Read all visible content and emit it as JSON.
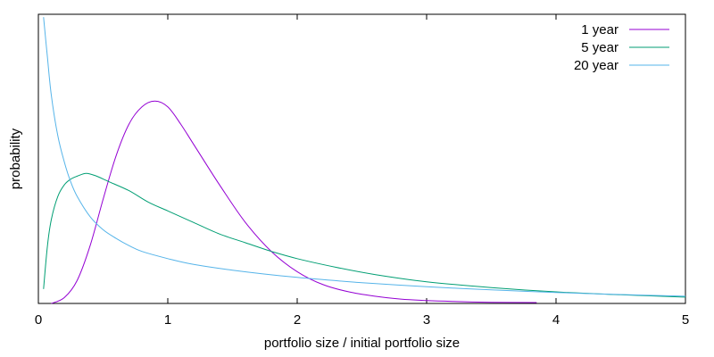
{
  "chart_data": {
    "type": "line",
    "title": "",
    "xlabel": "portfolio size / initial portfolio size",
    "ylabel": "probability",
    "xlim": [
      0,
      5
    ],
    "ylim": [
      0,
      1
    ],
    "grid": false,
    "legend_position": "top-right",
    "x_ticks": [
      0,
      1,
      2,
      3,
      4,
      5
    ],
    "x_tick_labels": [
      "0",
      "1",
      "2",
      "3",
      "4",
      "5"
    ],
    "y_tick_labels": [],
    "series": [
      {
        "name": "1 year",
        "color": "#9400d3",
        "x": [
          0.1,
          0.2,
          0.3,
          0.4,
          0.5,
          0.6,
          0.7,
          0.8,
          0.9,
          1.0,
          1.1,
          1.2,
          1.4,
          1.6,
          1.8,
          2.0,
          2.2,
          2.4,
          2.6,
          2.8,
          3.0,
          3.2,
          3.5,
          3.85
        ],
        "y": [
          0.0,
          0.02,
          0.08,
          0.2,
          0.36,
          0.51,
          0.62,
          0.68,
          0.7,
          0.68,
          0.62,
          0.55,
          0.41,
          0.28,
          0.18,
          0.11,
          0.065,
          0.04,
          0.025,
          0.015,
          0.01,
          0.007,
          0.004,
          0.003
        ]
      },
      {
        "name": "5 year",
        "color": "#009e73",
        "x": [
          0.04,
          0.07,
          0.1,
          0.15,
          0.2,
          0.25,
          0.3,
          0.37,
          0.45,
          0.55,
          0.7,
          0.85,
          1.0,
          1.2,
          1.4,
          1.6,
          1.8,
          2.0,
          2.3,
          2.6,
          3.0,
          3.5,
          4.0,
          4.5,
          5.0
        ],
        "y": [
          0.05,
          0.2,
          0.29,
          0.37,
          0.41,
          0.43,
          0.44,
          0.45,
          0.44,
          0.42,
          0.39,
          0.35,
          0.32,
          0.28,
          0.24,
          0.21,
          0.18,
          0.155,
          0.125,
          0.1,
          0.075,
          0.055,
          0.04,
          0.03,
          0.022
        ]
      },
      {
        "name": "20 year",
        "color": "#56b4e9",
        "x": [
          0.04,
          0.07,
          0.1,
          0.15,
          0.2,
          0.25,
          0.3,
          0.4,
          0.5,
          0.6,
          0.7,
          0.8,
          1.0,
          1.2,
          1.5,
          2.0,
          2.5,
          3.0,
          3.5,
          4.0,
          4.5,
          5.0
        ],
        "y": [
          0.99,
          0.85,
          0.72,
          0.58,
          0.49,
          0.42,
          0.37,
          0.3,
          0.255,
          0.225,
          0.2,
          0.18,
          0.155,
          0.135,
          0.115,
          0.09,
          0.072,
          0.058,
          0.047,
          0.038,
          0.031,
          0.025
        ]
      }
    ]
  }
}
